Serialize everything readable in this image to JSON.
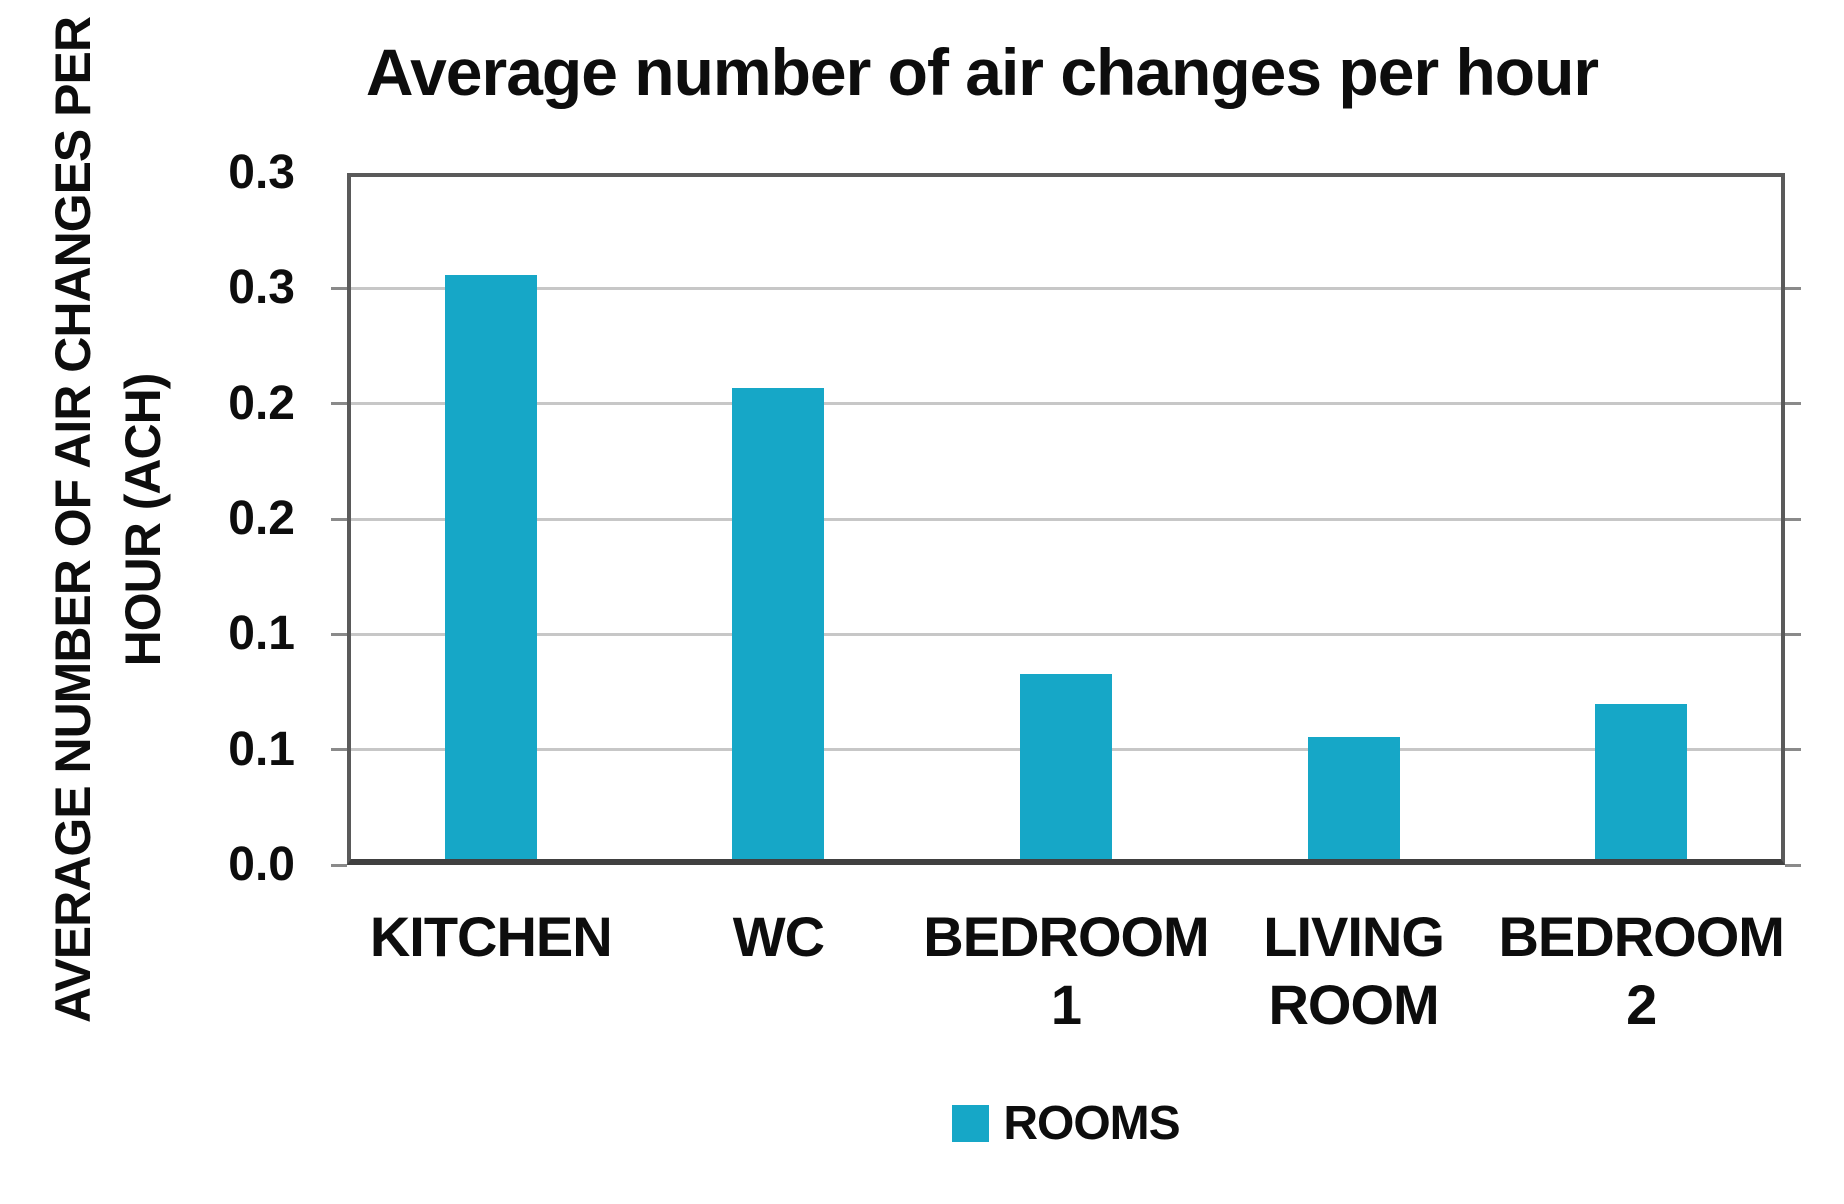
{
  "chart_data": {
    "type": "bar",
    "title": "Average number of air changes per hour",
    "ylabel_lines": [
      "AVERAGE NUMBER OF AIR CHANGES PER",
      "HOUR (ACH)"
    ],
    "xlabel": "",
    "ylim": [
      0,
      0.3
    ],
    "y_major_unit": 0.05,
    "y_tick_values": [
      0.3,
      0.25,
      0.2,
      0.15,
      0.1,
      0.05,
      0.0
    ],
    "y_tick_labels": [
      "0.3",
      "0.3",
      "0.2",
      "0.2",
      "0.1",
      "0.1",
      "0.0"
    ],
    "categories": [
      {
        "name": "KITCHEN",
        "lines": [
          "KITCHEN"
        ]
      },
      {
        "name": "WC",
        "lines": [
          "WC"
        ]
      },
      {
        "name": "BEDROOM 1",
        "lines": [
          "BEDROOM",
          "1"
        ]
      },
      {
        "name": "LIVING ROOM",
        "lines": [
          "LIVING",
          "ROOM"
        ]
      },
      {
        "name": "BEDROOM 2",
        "lines": [
          "BEDROOM",
          "2"
        ]
      }
    ],
    "values": [
      0.253,
      0.204,
      0.08,
      0.053,
      0.067
    ],
    "series_name": "ROOMS",
    "legend": {
      "label": "ROOMS",
      "position": "bottom"
    },
    "grid": true,
    "colors": {
      "bar": "#16A7C7",
      "gridline": "#C7C7C7",
      "plot_border": "#5A5A5A",
      "axis_line": "#404040",
      "tick_nub": "#8A8A8A",
      "text": "#0D0D0D",
      "background": "#FFFFFF"
    }
  }
}
